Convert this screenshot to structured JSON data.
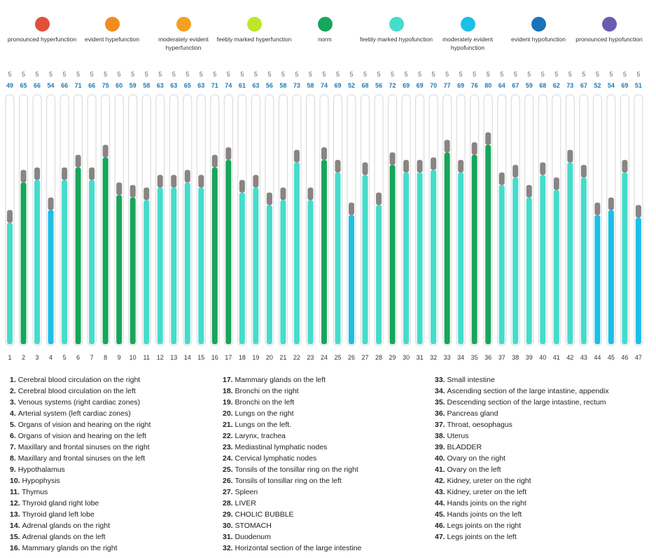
{
  "legend": [
    {
      "label": "pronounced hyperfunction",
      "color": "#e0503a"
    },
    {
      "label": "evident hypefunction",
      "color": "#f28c1e"
    },
    {
      "label": "moderately evident hyperfunction",
      "color": "#f4a021"
    },
    {
      "label": "feebly marked hyperfunction",
      "color": "#bde82a"
    },
    {
      "label": "norm",
      "color": "#17a65b"
    },
    {
      "label": "feebly marked hypofunction",
      "color": "#45dccb"
    },
    {
      "label": "moderately evident hypofunction",
      "color": "#1bbfe8"
    },
    {
      "label": "evident hypofunction",
      "color": "#1a74b8"
    },
    {
      "label": "pronounced hypofunction",
      "color": "#6a5db0"
    }
  ],
  "chart_data": {
    "type": "bar",
    "categories": [
      "1",
      "2",
      "3",
      "4",
      "5",
      "6",
      "7",
      "8",
      "9",
      "10",
      "11",
      "12",
      "13",
      "14",
      "15",
      "16",
      "17",
      "18",
      "19",
      "20",
      "21",
      "22",
      "23",
      "24",
      "25",
      "26",
      "27",
      "28",
      "29",
      "30",
      "31",
      "32",
      "33",
      "34",
      "35",
      "36",
      "37",
      "38",
      "39",
      "40",
      "41",
      "42",
      "43",
      "44",
      "45",
      "46",
      "47"
    ],
    "values": [
      49,
      65,
      66,
      54,
      66,
      71,
      66,
      75,
      60,
      59,
      58,
      63,
      63,
      65,
      63,
      71,
      74,
      61,
      63,
      56,
      58,
      73,
      58,
      74,
      69,
      52,
      68,
      56,
      72,
      69,
      69,
      70,
      77,
      69,
      76,
      80,
      64,
      67,
      59,
      68,
      62,
      73,
      67,
      52,
      54,
      69,
      51
    ],
    "errors": [
      5,
      5,
      5,
      5,
      5,
      5,
      5,
      5,
      5,
      5,
      5,
      5,
      5,
      5,
      5,
      5,
      5,
      5,
      5,
      5,
      5,
      5,
      5,
      5,
      5,
      5,
      5,
      5,
      5,
      5,
      5,
      5,
      5,
      5,
      5,
      5,
      5,
      5,
      5,
      5,
      5,
      5,
      5,
      5,
      5,
      5,
      5
    ],
    "category_levels": [
      "feebly marked hypofunction",
      "norm",
      "feebly marked hypofunction",
      "moderately evident hypofunction",
      "feebly marked hypofunction",
      "norm",
      "feebly marked hypofunction",
      "norm",
      "norm",
      "norm",
      "feebly marked hypofunction",
      "feebly marked hypofunction",
      "feebly marked hypofunction",
      "feebly marked hypofunction",
      "feebly marked hypofunction",
      "norm",
      "norm",
      "feebly marked hypofunction",
      "feebly marked hypofunction",
      "feebly marked hypofunction",
      "feebly marked hypofunction",
      "feebly marked hypofunction",
      "feebly marked hypofunction",
      "norm",
      "feebly marked hypofunction",
      "moderately evident hypofunction",
      "feebly marked hypofunction",
      "feebly marked hypofunction",
      "norm",
      "feebly marked hypofunction",
      "feebly marked hypofunction",
      "feebly marked hypofunction",
      "norm",
      "feebly marked hypofunction",
      "norm",
      "norm",
      "feebly marked hypofunction",
      "feebly marked hypofunction",
      "feebly marked hypofunction",
      "feebly marked hypofunction",
      "feebly marked hypofunction",
      "feebly marked hypofunction",
      "feebly marked hypofunction",
      "moderately evident hypofunction",
      "moderately evident hypofunction",
      "feebly marked hypofunction",
      "moderately evident hypofunction"
    ],
    "bar_colors": [
      "#45dccb",
      "#17a65b",
      "#45dccb",
      "#1bbfe8",
      "#45dccb",
      "#17a65b",
      "#45dccb",
      "#17a65b",
      "#17a65b",
      "#17a65b",
      "#45dccb",
      "#45dccb",
      "#45dccb",
      "#45dccb",
      "#45dccb",
      "#17a65b",
      "#17a65b",
      "#45dccb",
      "#45dccb",
      "#45dccb",
      "#45dccb",
      "#45dccb",
      "#45dccb",
      "#17a65b",
      "#45dccb",
      "#1bbfe8",
      "#45dccb",
      "#45dccb",
      "#17a65b",
      "#45dccb",
      "#45dccb",
      "#45dccb",
      "#17a65b",
      "#45dccb",
      "#17a65b",
      "#17a65b",
      "#45dccb",
      "#45dccb",
      "#45dccb",
      "#45dccb",
      "#45dccb",
      "#45dccb",
      "#45dccb",
      "#1bbfe8",
      "#1bbfe8",
      "#45dccb",
      "#1bbfe8"
    ],
    "error_color": "#8a8484",
    "value_label_color": "#1e7bb8",
    "ylim": [
      0,
      100
    ],
    "title": "",
    "xlabel": "",
    "ylabel": ""
  },
  "organs": [
    "Cerebral blood circulation on the right",
    "Cerebral blood circulation on the left",
    "Venous systems (right cardiac zones)",
    "Arterial system (left cardiac zones)",
    "Organs of vision and hearing on the right",
    "Organs of vision and hearing on the left",
    "Maxillary and frontal sinuses on the right",
    "Maxillary and frontal sinuses on the left",
    "Hypothalamus",
    "Hypophysis",
    "Thymus",
    "Thyroid gland right lobe",
    "Thyroid gland left lobe",
    "Adrenal glands on the right",
    "Adrenal glands on the left",
    "Mammary glands on the right",
    "Mammary glands on the left",
    "Bronchi on the right",
    "Bronchi on the left",
    "Lungs on the right",
    "Lungs on the left.",
    "Larynx, trachea",
    "Mediastinal lymphatic nodes",
    "Cervical lymphatic nodes",
    "Tonsils of the tonsillar ring on the right",
    "Tonsils of tonsillar ring on the left",
    "Spleen",
    "LIVER",
    "CHOLIC BUBBLE",
    "STOMACH",
    "Duodenum",
    "Horizontal section of the large intestine",
    "Small intestine",
    "Ascending section of the large intastine, appendix",
    "Descending section of the large intastine, rectum",
    "Pancreas gland",
    "Throat, oesophagus",
    "Uterus",
    "BLADDER",
    "Ovary on the right",
    "Ovary on the left",
    "Kidney, ureter on the right",
    "Kidney, ureter on the left",
    "Hands joints on the right",
    "Hands joints on the left",
    "Legs joints on the right",
    "Legs joints on the left"
  ]
}
